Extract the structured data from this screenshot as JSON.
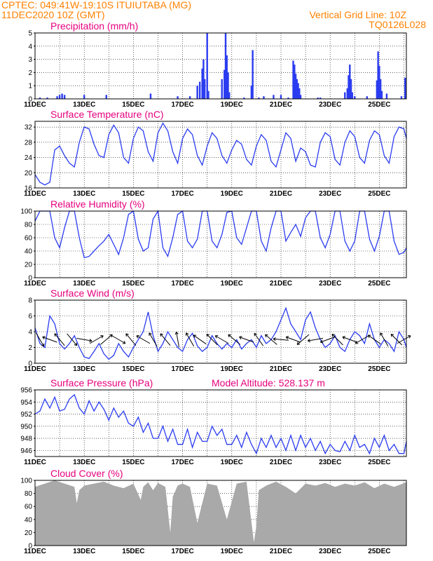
{
  "header": {
    "station_line": "CPTEC:   049:41W-19:10S   ITUIUTABA (MG)",
    "datetime": "11DEC2020 10Z (GMT)",
    "grid_note": "Vertical Grid Line: 10Z",
    "code": "TQ0126L028"
  },
  "colors": {
    "header": "#ff8000",
    "title": "#e6007e",
    "series": "#2b3cf0",
    "cloud": "#a9a9a9",
    "arrow": "#000000"
  },
  "x_ticks": [
    "11DEC",
    "13DEC",
    "15DEC",
    "17DEC",
    "19DEC",
    "21DEC",
    "23DEC",
    "25DEC"
  ],
  "chart_data": [
    {
      "id": "precip",
      "type": "bar",
      "title": "Precipitation (mm/h)",
      "ylim": [
        0,
        5
      ],
      "yticks": [
        0,
        1,
        2,
        3,
        4,
        5
      ],
      "xlim_days": [
        11.0,
        26.1
      ],
      "x": [
        11.2,
        11.5,
        11.9,
        12.0,
        12.1,
        12.2,
        13.0,
        13.9,
        15.7,
        16.8,
        17.3,
        17.6,
        17.7,
        17.8,
        17.85,
        17.9,
        18.0,
        18.05,
        18.6,
        18.7,
        18.75,
        18.8,
        18.85,
        18.9,
        19.5,
        19.8,
        19.85,
        20.1,
        20.3,
        20.7,
        21.0,
        21.3,
        21.5,
        21.55,
        21.6,
        21.65,
        21.7,
        21.75,
        21.8,
        22.5,
        22.6,
        23.6,
        23.7,
        23.75,
        23.8,
        23.85,
        23.9,
        24.0,
        24.5,
        24.9,
        24.95,
        25.0,
        25.05,
        25.1,
        25.3,
        25.9,
        26.05
      ],
      "values": [
        0.1,
        0.1,
        0.2,
        0.3,
        0.4,
        0.3,
        0.3,
        0.3,
        0.4,
        0.2,
        0.2,
        1.0,
        1.3,
        2.3,
        3.0,
        1.5,
        5.0,
        0.6,
        1.5,
        2.2,
        5.0,
        3.3,
        2.0,
        0.5,
        0.1,
        1.0,
        3.7,
        0.1,
        0.2,
        0.3,
        0.3,
        0.1,
        2.9,
        2.6,
        1.9,
        1.5,
        1.2,
        0.8,
        0.3,
        0.1,
        0.1,
        0.5,
        0.8,
        1.8,
        2.6,
        1.5,
        0.5,
        0.2,
        0.2,
        1.4,
        3.6,
        2.5,
        1.5,
        0.6,
        0.4,
        0.2,
        1.6
      ]
    },
    {
      "id": "temp",
      "type": "line",
      "title": "Surface Temperature (nC)",
      "ylim": [
        16,
        33.5
      ],
      "yticks": [
        16,
        20,
        24,
        28,
        32
      ],
      "xlim_days": [
        11.0,
        26.1
      ],
      "x": [
        11.0,
        11.2,
        11.4,
        11.6,
        11.8,
        12.0,
        12.2,
        12.4,
        12.6,
        12.8,
        13.0,
        13.2,
        13.4,
        13.6,
        13.8,
        14.0,
        14.2,
        14.4,
        14.6,
        14.8,
        15.0,
        15.2,
        15.4,
        15.6,
        15.8,
        16.0,
        16.2,
        16.4,
        16.6,
        16.8,
        17.0,
        17.2,
        17.4,
        17.6,
        17.8,
        18.0,
        18.2,
        18.4,
        18.6,
        18.8,
        19.0,
        19.2,
        19.4,
        19.6,
        19.8,
        20.0,
        20.2,
        20.4,
        20.6,
        20.8,
        21.0,
        21.2,
        21.4,
        21.6,
        21.8,
        22.0,
        22.2,
        22.4,
        22.6,
        22.8,
        23.0,
        23.2,
        23.4,
        23.6,
        23.8,
        24.0,
        24.2,
        24.4,
        24.6,
        24.8,
        25.0,
        25.2,
        25.4,
        25.6,
        25.8,
        26.0,
        26.1
      ],
      "values": [
        19.5,
        17.5,
        16.8,
        17.5,
        26.0,
        27.0,
        24.5,
        22.5,
        21.5,
        28.0,
        32.0,
        31.5,
        27.5,
        24.5,
        24.0,
        30.0,
        32.5,
        30.5,
        24.0,
        22.5,
        29.0,
        32.0,
        31.0,
        25.5,
        23.0,
        30.5,
        33.0,
        31.0,
        25.5,
        22.5,
        29.0,
        31.5,
        30.0,
        24.5,
        22.0,
        27.0,
        30.5,
        29.0,
        24.5,
        22.5,
        26.0,
        28.5,
        27.5,
        23.5,
        22.0,
        27.0,
        30.0,
        28.5,
        23.0,
        21.5,
        26.0,
        30.5,
        29.0,
        23.0,
        26.5,
        25.5,
        22.0,
        21.5,
        28.0,
        30.5,
        29.5,
        23.5,
        22.0,
        28.0,
        31.0,
        29.5,
        24.0,
        22.5,
        28.5,
        31.0,
        30.0,
        24.5,
        22.5,
        29.5,
        32.0,
        31.5,
        29.0
      ]
    },
    {
      "id": "rh",
      "type": "line",
      "title": "Relative Humidity (%)",
      "ylim": [
        0,
        100
      ],
      "yticks": [
        0,
        20,
        40,
        60,
        80,
        100
      ],
      "xlim_days": [
        11.0,
        26.1
      ],
      "x": [
        11.0,
        11.2,
        11.4,
        11.6,
        11.8,
        12.0,
        12.2,
        12.4,
        12.6,
        12.8,
        13.0,
        13.2,
        13.4,
        13.6,
        13.8,
        14.0,
        14.2,
        14.4,
        14.6,
        14.8,
        15.0,
        15.2,
        15.4,
        15.6,
        15.8,
        16.0,
        16.2,
        16.4,
        16.6,
        16.8,
        17.0,
        17.2,
        17.4,
        17.6,
        17.8,
        18.0,
        18.2,
        18.4,
        18.6,
        18.8,
        19.0,
        19.2,
        19.4,
        19.6,
        19.8,
        20.0,
        20.2,
        20.4,
        20.6,
        20.8,
        21.0,
        21.2,
        21.4,
        21.6,
        21.8,
        22.0,
        22.2,
        22.4,
        22.6,
        22.8,
        23.0,
        23.2,
        23.4,
        23.6,
        23.8,
        24.0,
        24.2,
        24.4,
        24.6,
        24.8,
        25.0,
        25.2,
        25.4,
        25.6,
        25.8,
        26.0,
        26.1
      ],
      "values": [
        85,
        100,
        100,
        100,
        60,
        45,
        75,
        100,
        100,
        60,
        30,
        32,
        40,
        48,
        55,
        65,
        50,
        35,
        60,
        95,
        100,
        58,
        40,
        45,
        88,
        100,
        45,
        32,
        60,
        95,
        100,
        55,
        45,
        58,
        100,
        100,
        55,
        45,
        65,
        98,
        100,
        60,
        50,
        75,
        100,
        100,
        55,
        40,
        75,
        100,
        100,
        55,
        68,
        80,
        62,
        90,
        100,
        100,
        60,
        45,
        65,
        100,
        100,
        55,
        40,
        55,
        100,
        100,
        58,
        40,
        62,
        100,
        100,
        55,
        35,
        38,
        45
      ]
    },
    {
      "id": "wind",
      "type": "line",
      "title": "Surface Wind (m/s)",
      "ylim": [
        0,
        8
      ],
      "yticks": [
        0,
        2,
        4,
        6,
        8
      ],
      "xlim_days": [
        11.0,
        26.1
      ],
      "x": [
        11.0,
        11.2,
        11.4,
        11.6,
        11.8,
        12.0,
        12.2,
        12.4,
        12.6,
        12.8,
        13.0,
        13.2,
        13.4,
        13.6,
        13.8,
        14.0,
        14.2,
        14.4,
        14.6,
        14.8,
        15.0,
        15.2,
        15.4,
        15.6,
        15.8,
        16.0,
        16.2,
        16.4,
        16.6,
        16.8,
        17.0,
        17.2,
        17.4,
        17.6,
        17.8,
        18.0,
        18.2,
        18.4,
        18.6,
        18.8,
        19.0,
        19.2,
        19.4,
        19.6,
        19.8,
        20.0,
        20.2,
        20.4,
        20.6,
        20.8,
        21.0,
        21.2,
        21.4,
        21.6,
        21.8,
        22.0,
        22.2,
        22.4,
        22.6,
        22.8,
        23.0,
        23.2,
        23.4,
        23.6,
        23.8,
        24.0,
        24.2,
        24.4,
        24.6,
        24.8,
        25.0,
        25.2,
        25.4,
        25.6,
        25.8,
        26.0,
        26.1
      ],
      "values": [
        4.5,
        2.5,
        2.0,
        6.0,
        5.0,
        2.5,
        1.8,
        2.5,
        3.5,
        2.0,
        0.8,
        0.6,
        1.5,
        2.5,
        1.2,
        0.5,
        1.0,
        2.5,
        1.5,
        0.8,
        2.0,
        3.0,
        4.0,
        6.5,
        3.5,
        1.5,
        2.5,
        4.0,
        3.0,
        2.0,
        1.5,
        3.0,
        3.8,
        2.2,
        1.5,
        2.0,
        3.5,
        2.5,
        1.8,
        2.5,
        2.0,
        3.0,
        1.8,
        2.5,
        3.0,
        2.0,
        3.5,
        2.5,
        3.0,
        4.0,
        5.5,
        7.0,
        5.0,
        4.0,
        3.0,
        5.5,
        6.5,
        4.5,
        3.0,
        2.0,
        2.5,
        3.5,
        2.0,
        1.5,
        3.0,
        4.0,
        3.5,
        2.5,
        5.0,
        3.0,
        2.0,
        3.0,
        2.5,
        1.5,
        4.0,
        3.0,
        2.0
      ],
      "arrows_x": [
        11.2,
        11.6,
        12.0,
        12.5,
        13.0,
        13.5,
        13.9,
        14.4,
        14.9,
        15.4,
        15.8,
        16.3,
        16.8,
        17.3,
        17.7,
        18.2,
        18.6,
        19.1,
        19.6,
        20.1,
        20.6,
        21.0,
        21.5,
        21.9,
        22.4,
        22.9,
        23.3,
        23.8,
        24.3,
        24.8,
        25.2,
        25.7,
        26.0
      ],
      "arrows_dir_deg": [
        60,
        200,
        230,
        50,
        10,
        330,
        320,
        30,
        230,
        210,
        240,
        230,
        260,
        240,
        215,
        225,
        210,
        220,
        200,
        235,
        220,
        185,
        200,
        140,
        170,
        160,
        225,
        200,
        150,
        215,
        240,
        225,
        330
      ]
    },
    {
      "id": "pres",
      "type": "line",
      "title": "Surface Pressure (hPa)",
      "note": "Model Altitude: 528.137  m",
      "ylim": [
        945,
        956
      ],
      "yticks": [
        946,
        948,
        950,
        952,
        954,
        956
      ],
      "xlim_days": [
        11.0,
        26.1
      ],
      "x": [
        11.0,
        11.2,
        11.4,
        11.6,
        11.8,
        12.0,
        12.2,
        12.4,
        12.6,
        12.8,
        13.0,
        13.2,
        13.4,
        13.6,
        13.8,
        14.0,
        14.2,
        14.4,
        14.6,
        14.8,
        15.0,
        15.2,
        15.4,
        15.6,
        15.8,
        16.0,
        16.2,
        16.4,
        16.6,
        16.8,
        17.0,
        17.2,
        17.4,
        17.6,
        17.8,
        18.0,
        18.2,
        18.4,
        18.6,
        18.8,
        19.0,
        19.2,
        19.4,
        19.6,
        19.8,
        20.0,
        20.2,
        20.4,
        20.6,
        20.8,
        21.0,
        21.2,
        21.4,
        21.6,
        21.8,
        22.0,
        22.2,
        22.4,
        22.6,
        22.8,
        23.0,
        23.2,
        23.4,
        23.6,
        23.8,
        24.0,
        24.2,
        24.4,
        24.6,
        24.8,
        25.0,
        25.2,
        25.4,
        25.6,
        25.8,
        26.0,
        26.1
      ],
      "values": [
        952.0,
        952.5,
        954.5,
        953.0,
        954.8,
        952.5,
        952.8,
        954.5,
        955.2,
        953.0,
        952.0,
        954.2,
        952.5,
        954.0,
        952.8,
        951.0,
        953.0,
        951.5,
        952.5,
        950.5,
        950.0,
        951.5,
        949.0,
        950.5,
        948.0,
        948.0,
        950.0,
        947.5,
        949.5,
        947.0,
        947.0,
        949.5,
        946.5,
        949.0,
        947.5,
        947.5,
        950.0,
        948.5,
        949.5,
        947.0,
        947.0,
        948.5,
        946.5,
        949.0,
        947.0,
        945.5,
        948.0,
        946.5,
        948.5,
        946.5,
        948.0,
        946.0,
        948.5,
        946.0,
        948.5,
        946.5,
        948.0,
        946.0,
        947.5,
        945.5,
        947.0,
        946.0,
        945.8,
        947.5,
        946.0,
        948.5,
        946.5,
        947.0,
        945.5,
        948.0,
        946.5,
        948.5,
        946.0,
        947.0,
        945.5,
        945.5,
        947.5
      ]
    },
    {
      "id": "cloud",
      "type": "area",
      "title": "Cloud Cover (%)",
      "ylim": [
        0,
        100
      ],
      "yticks": [
        0,
        20,
        40,
        60,
        80,
        100
      ],
      "xlim_days": [
        11.0,
        26.1
      ],
      "x": [
        11.0,
        11.4,
        11.8,
        12.2,
        12.6,
        12.7,
        12.8,
        13.0,
        13.4,
        13.8,
        14.2,
        14.6,
        15.0,
        15.3,
        15.4,
        15.6,
        15.8,
        16.0,
        16.3,
        16.5,
        16.6,
        16.8,
        17.0,
        17.3,
        17.6,
        18.0,
        18.4,
        18.8,
        19.2,
        19.6,
        19.9,
        20.0,
        20.1,
        20.4,
        20.8,
        21.2,
        21.6,
        22.0,
        22.4,
        22.8,
        23.2,
        23.6,
        24.0,
        24.4,
        24.8,
        25.2,
        25.6,
        26.1
      ],
      "values": [
        90,
        95,
        100,
        95,
        90,
        65,
        85,
        92,
        95,
        98,
        92,
        88,
        95,
        70,
        90,
        97,
        85,
        96,
        90,
        20,
        75,
        92,
        95,
        90,
        35,
        95,
        92,
        40,
        95,
        98,
        5,
        30,
        85,
        92,
        98,
        90,
        80,
        95,
        92,
        96,
        90,
        95,
        92,
        97,
        88,
        95,
        90,
        97
      ]
    }
  ]
}
